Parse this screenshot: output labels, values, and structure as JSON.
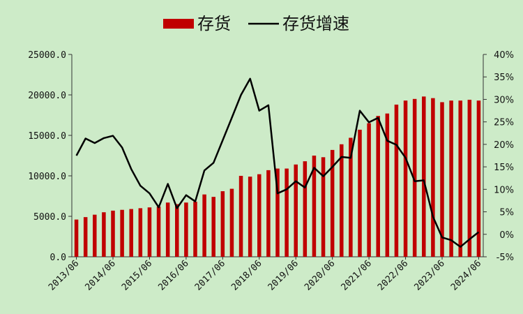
{
  "chart_data": {
    "type": "bar",
    "legend": {
      "bar_label": "存货",
      "line_label": "存货增速",
      "placement": "top-center"
    },
    "colors": {
      "bar": "#c00000",
      "line": "#000000",
      "background": "#cdebc8"
    },
    "y_left": {
      "ylim": [
        0,
        25000
      ],
      "ticks": [
        "0.0",
        "5000.0",
        "10000.0",
        "15000.0",
        "20000.0",
        "25000.0"
      ]
    },
    "y_right": {
      "ylim": [
        -5,
        40
      ],
      "ticks": [
        "-5%",
        "0%",
        "5%",
        "10%",
        "15%",
        "20%",
        "25%",
        "30%",
        "35%",
        "40%"
      ]
    },
    "x_tick_labels": [
      "2013/06",
      "2014/06",
      "2015/06",
      "2016/06",
      "2017/06",
      "2018/06",
      "2019/06",
      "2020/06",
      "2021/06",
      "2022/06",
      "2023/06",
      "2024/06"
    ],
    "categories": [
      "2013/06",
      "2013/09",
      "2013/12",
      "2014/03",
      "2014/06",
      "2014/09",
      "2014/12",
      "2015/03",
      "2015/06",
      "2015/09",
      "2015/12",
      "2016/03",
      "2016/06",
      "2016/09",
      "2016/12",
      "2017/03",
      "2017/06",
      "2017/09",
      "2017/12",
      "2018/03",
      "2018/06",
      "2018/09",
      "2018/12",
      "2019/03",
      "2019/06",
      "2019/09",
      "2019/12",
      "2020/03",
      "2020/06",
      "2020/09",
      "2020/12",
      "2021/03",
      "2021/06",
      "2021/09",
      "2021/12",
      "2022/03",
      "2022/06",
      "2022/09",
      "2022/12",
      "2023/03",
      "2023/06",
      "2023/09",
      "2023/12",
      "2024/03",
      "2024/06"
    ],
    "series": [
      {
        "name": "存货",
        "type": "bar",
        "axis": "left",
        "values": [
          4600,
          4900,
          5200,
          5500,
          5700,
          5800,
          5900,
          6000,
          6100,
          6200,
          6700,
          6500,
          6700,
          6800,
          7700,
          7400,
          8100,
          8400,
          10000,
          9900,
          10200,
          10700,
          10900,
          10900,
          11400,
          11800,
          12500,
          12300,
          13200,
          13900,
          14700,
          15700,
          16500,
          17400,
          17700,
          18800,
          19300,
          19500,
          19800,
          19600,
          19100,
          19300,
          19300,
          19400,
          19300
        ]
      },
      {
        "name": "存货增速",
        "type": "line",
        "axis": "right",
        "values": [
          17.5,
          21.3,
          20.3,
          21.4,
          21.9,
          19.3,
          14.5,
          10.8,
          9.1,
          6.0,
          11.2,
          5.8,
          8.7,
          7.3,
          14.2,
          15.9,
          20.9,
          25.9,
          31.0,
          34.6,
          27.5,
          28.7,
          9.1,
          10.0,
          11.8,
          10.4,
          14.8,
          12.9,
          15.0,
          17.2,
          17.0,
          27.5,
          24.9,
          25.9,
          20.8,
          19.9,
          17.0,
          11.8,
          12.0,
          3.9,
          -0.7,
          -1.3,
          -2.8,
          -1.1,
          0.5
        ]
      }
    ]
  }
}
